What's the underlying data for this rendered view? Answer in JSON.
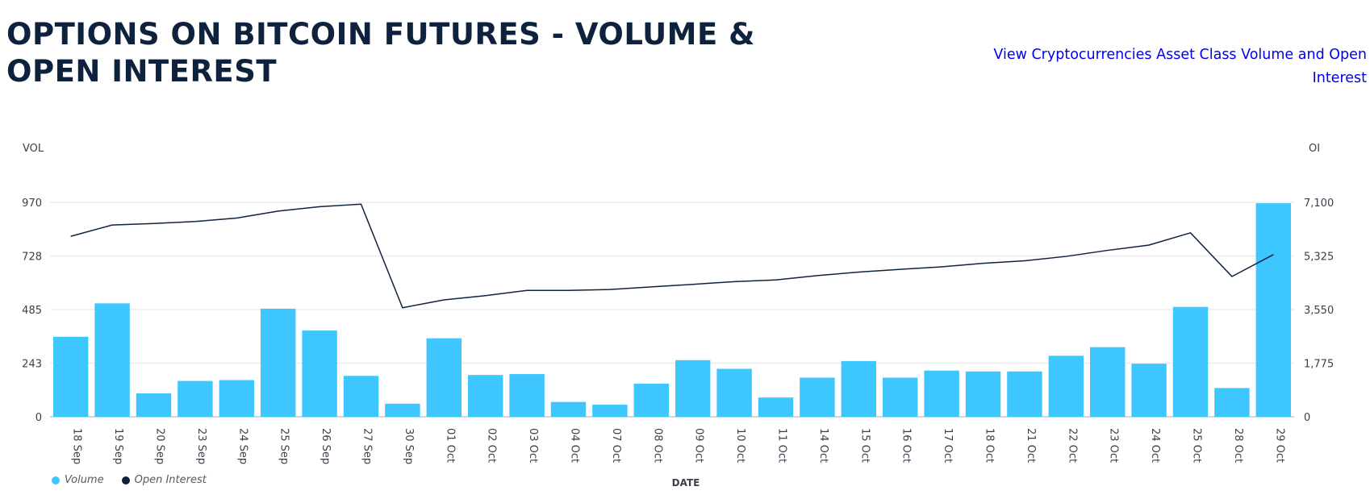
{
  "header": {
    "title": "OPTIONS ON BITCOIN FUTURES - VOLUME & OPEN INTEREST",
    "link": "View Cryptocurrencies Asset Class Volume and Open Interest"
  },
  "chart_data": {
    "type": "bar+line",
    "xlabel": "DATE",
    "ylabel_left": "VOL",
    "ylabel_right": "OI",
    "ylim_left": [
      0,
      970
    ],
    "ylim_right": [
      0,
      7100
    ],
    "yticks_left": [
      "0",
      "243",
      "485",
      "728",
      "970"
    ],
    "yticks_right": [
      "0",
      "1,775",
      "3,550",
      "5,325",
      "7,100"
    ],
    "grid": true,
    "legend_position": "bottom-left",
    "categories": [
      "18 Sep",
      "19 Sep",
      "20 Sep",
      "23 Sep",
      "24 Sep",
      "25 Sep",
      "26 Sep",
      "27 Sep",
      "30 Sep",
      "01 Oct",
      "02 Oct",
      "03 Oct",
      "04 Oct",
      "07 Oct",
      "08 Oct",
      "09 Oct",
      "10 Oct",
      "11 Oct",
      "14 Oct",
      "15 Oct",
      "16 Oct",
      "17 Oct",
      "18 Oct",
      "21 Oct",
      "22 Oct",
      "23 Oct",
      "24 Oct",
      "25 Oct",
      "28 Oct",
      "29 Oct"
    ],
    "series": [
      {
        "name": "Volume",
        "type": "bar",
        "axis": "left",
        "color": "#3ec6ff",
        "values": [
          362,
          513,
          106,
          162,
          166,
          489,
          390,
          185,
          59,
          355,
          189,
          193,
          67,
          55,
          150,
          256,
          217,
          87,
          177,
          252,
          177,
          209,
          205,
          205,
          276,
          315,
          240,
          497,
          130,
          966
        ]
      },
      {
        "name": "Open Interest",
        "type": "line",
        "axis": "right",
        "color": "#0f223d",
        "values": [
          5975,
          6350,
          6400,
          6465,
          6580,
          6810,
          6955,
          7040,
          3610,
          3870,
          4010,
          4185,
          4185,
          4215,
          4300,
          4385,
          4475,
          4530,
          4675,
          4790,
          4880,
          4965,
          5080,
          5165,
          5310,
          5510,
          5685,
          6090,
          4645,
          5370
        ]
      }
    ]
  }
}
